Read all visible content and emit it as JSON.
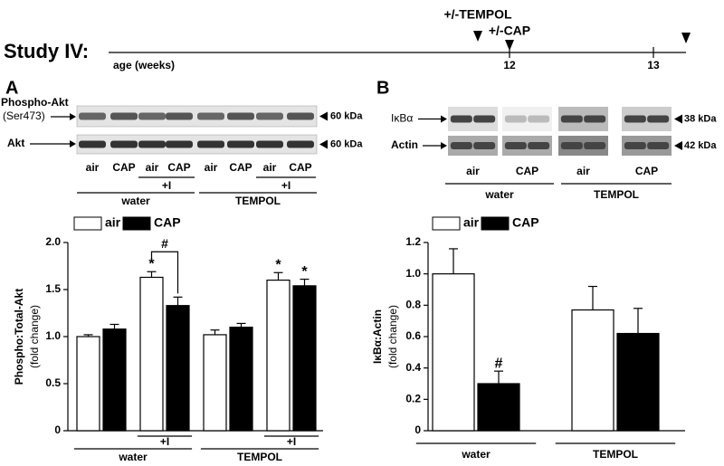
{
  "timeline": {
    "study": "Study IV:",
    "axis_label": "age (weeks)",
    "ticks": [
      "12",
      "13"
    ],
    "annotations": [
      "+/-TEMPOL",
      "+/-CAP"
    ]
  },
  "panels": [
    "A",
    "B"
  ],
  "blot_a": {
    "rows": [
      [
        "Phospho-Akt",
        "(Ser473)"
      ],
      [
        "Akt"
      ]
    ],
    "sizes": [
      "60 kDa",
      "60 kDa"
    ],
    "lanes": [
      "air",
      "CAP",
      "air",
      "CAP",
      "air",
      "CAP",
      "air",
      "CAP"
    ],
    "treatments": [
      null,
      "+I",
      null,
      "+I"
    ],
    "groups": [
      "water",
      "TEMPOL"
    ]
  },
  "blot_b": {
    "rows": [
      [
        "IκBα"
      ],
      [
        "Actin"
      ]
    ],
    "sizes": [
      "38 kDa",
      "42 kDa"
    ],
    "lanes": [
      "air",
      "CAP",
      "air",
      "CAP"
    ],
    "groups": [
      "water",
      "TEMPOL"
    ]
  },
  "chart_data": [
    {
      "type": "bar",
      "ylabel": [
        "Phospho:Total-Akt",
        "(fold change)"
      ],
      "categories": [
        null,
        "+I",
        null,
        "+I"
      ],
      "groups": [
        "water",
        "TEMPOL"
      ],
      "series": [
        {
          "name": "air",
          "color": "#ffffff",
          "values": [
            1.0,
            1.63,
            1.02,
            1.6
          ],
          "errors": [
            0.02,
            0.06,
            0.05,
            0.08
          ],
          "annotations": [
            null,
            "*",
            null,
            "*"
          ]
        },
        {
          "name": "CAP",
          "color": "#000000",
          "values": [
            1.08,
            1.33,
            1.1,
            1.54
          ],
          "errors": [
            0.05,
            0.09,
            0.04,
            0.07
          ],
          "annotations": [
            null,
            null,
            null,
            "*"
          ]
        }
      ],
      "bracket_labels": [
        null,
        "#",
        null,
        null
      ],
      "ylim": [
        0,
        2.0
      ],
      "yticks": [
        0,
        0.5,
        {
          "value": 1.0,
          "label": "1.0"
        },
        1.5,
        {
          "value": 2.0,
          "label": "2.0"
        }
      ]
    },
    {
      "type": "bar",
      "ylabel": [
        "IκBα:Actin",
        "(fold change)"
      ],
      "categories": [
        "water",
        "TEMPOL"
      ],
      "series": [
        {
          "name": "air",
          "color": "#ffffff",
          "values": [
            1.0,
            0.77
          ],
          "errors": [
            0.16,
            0.15
          ]
        },
        {
          "name": "CAP",
          "color": "#000000",
          "values": [
            0.3,
            0.62
          ],
          "errors": [
            0.08,
            0.16
          ],
          "annotations": [
            "#",
            null
          ]
        }
      ],
      "ylim": [
        0,
        1.2
      ],
      "yticks": [
        0,
        0.2,
        0.4,
        0.6,
        0.8,
        {
          "value": 1.0,
          "label": "1.0"
        },
        1.2
      ]
    }
  ]
}
